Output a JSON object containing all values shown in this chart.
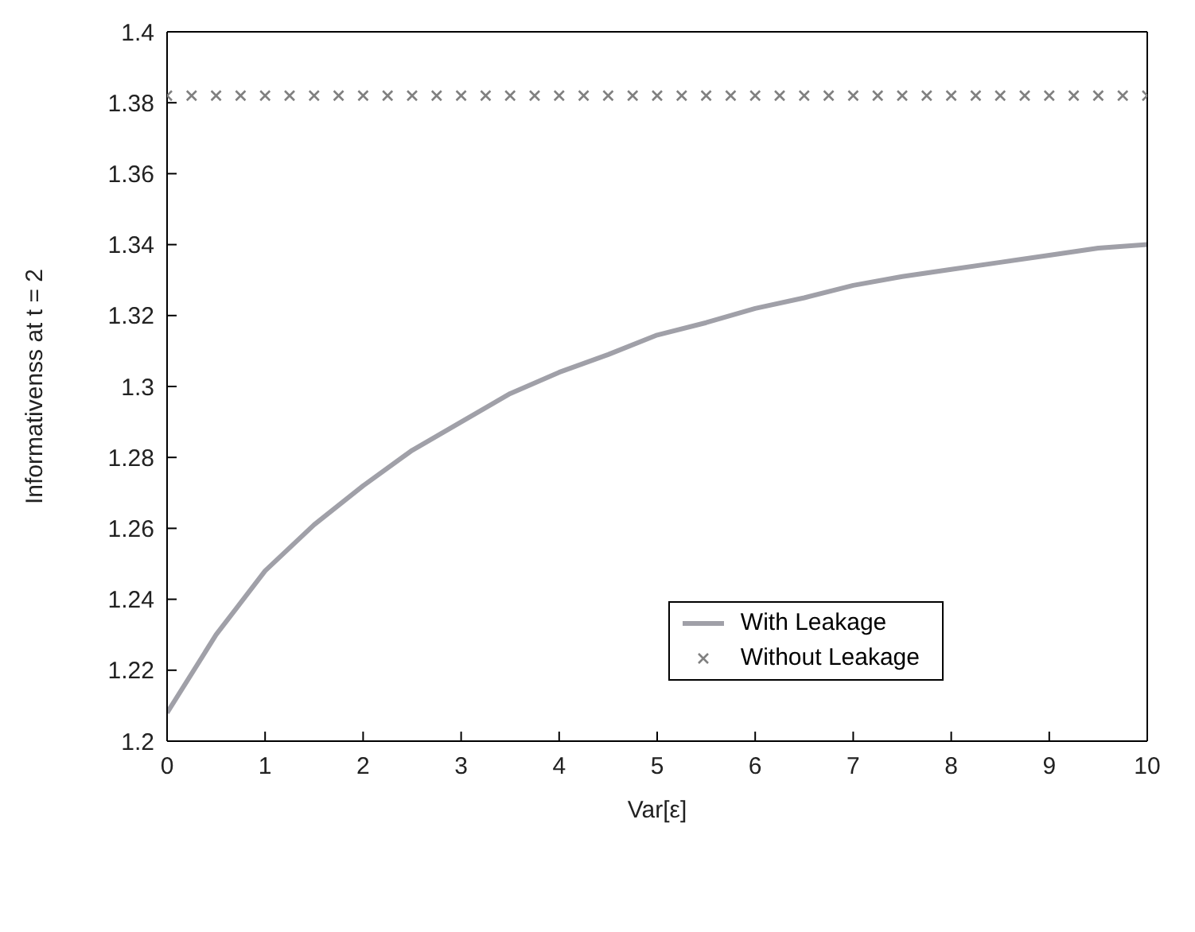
{
  "chart_data": {
    "type": "line",
    "xlabel": "Var[ε]",
    "ylabel": "Informativenss at t = 2",
    "xlim": [
      0,
      10
    ],
    "xticks": [
      0,
      1,
      2,
      3,
      4,
      5,
      6,
      7,
      8,
      9,
      10
    ],
    "ylim": [
      1.2,
      1.4
    ],
    "yticks": [
      1.2,
      1.22,
      1.24,
      1.26,
      1.28,
      1.3,
      1.32,
      1.34,
      1.36,
      1.38,
      1.4
    ],
    "legend": "right",
    "series": [
      {
        "name": "With Leakage",
        "color": "#a0a0a8",
        "marker": "none",
        "x": [
          0,
          0.5,
          1,
          1.5,
          2,
          2.5,
          3,
          3.5,
          4,
          4.5,
          5,
          5.5,
          6,
          6.5,
          7,
          7.5,
          8,
          8.5,
          9,
          9.5,
          10
        ],
        "values": [
          1.208,
          1.23,
          1.248,
          1.261,
          1.272,
          1.282,
          1.29,
          1.298,
          1.304,
          1.309,
          1.3145,
          1.318,
          1.322,
          1.325,
          1.3285,
          1.331,
          1.333,
          1.335,
          1.337,
          1.339,
          1.34
        ]
      },
      {
        "name": "Without Leakage",
        "type": "scatter",
        "color": "#808080",
        "marker": "cross",
        "x": [
          0,
          0.25,
          0.5,
          0.75,
          1,
          1.25,
          1.5,
          1.75,
          2,
          2.25,
          2.5,
          2.75,
          3,
          3.25,
          3.5,
          3.75,
          4,
          4.25,
          4.5,
          4.75,
          5,
          5.25,
          5.5,
          5.75,
          6,
          6.25,
          6.5,
          6.75,
          7,
          7.25,
          7.5,
          7.75,
          8,
          8.25,
          8.5,
          8.75,
          9,
          9.25,
          9.5,
          9.75,
          10
        ],
        "values": [
          1.382,
          1.382,
          1.382,
          1.382,
          1.382,
          1.382,
          1.382,
          1.382,
          1.382,
          1.382,
          1.382,
          1.382,
          1.382,
          1.382,
          1.382,
          1.382,
          1.382,
          1.382,
          1.382,
          1.382,
          1.382,
          1.382,
          1.382,
          1.382,
          1.382,
          1.382,
          1.382,
          1.382,
          1.382,
          1.382,
          1.382,
          1.382,
          1.382,
          1.382,
          1.382,
          1.382,
          1.382,
          1.382,
          1.382,
          1.382,
          1.382
        ]
      }
    ]
  }
}
